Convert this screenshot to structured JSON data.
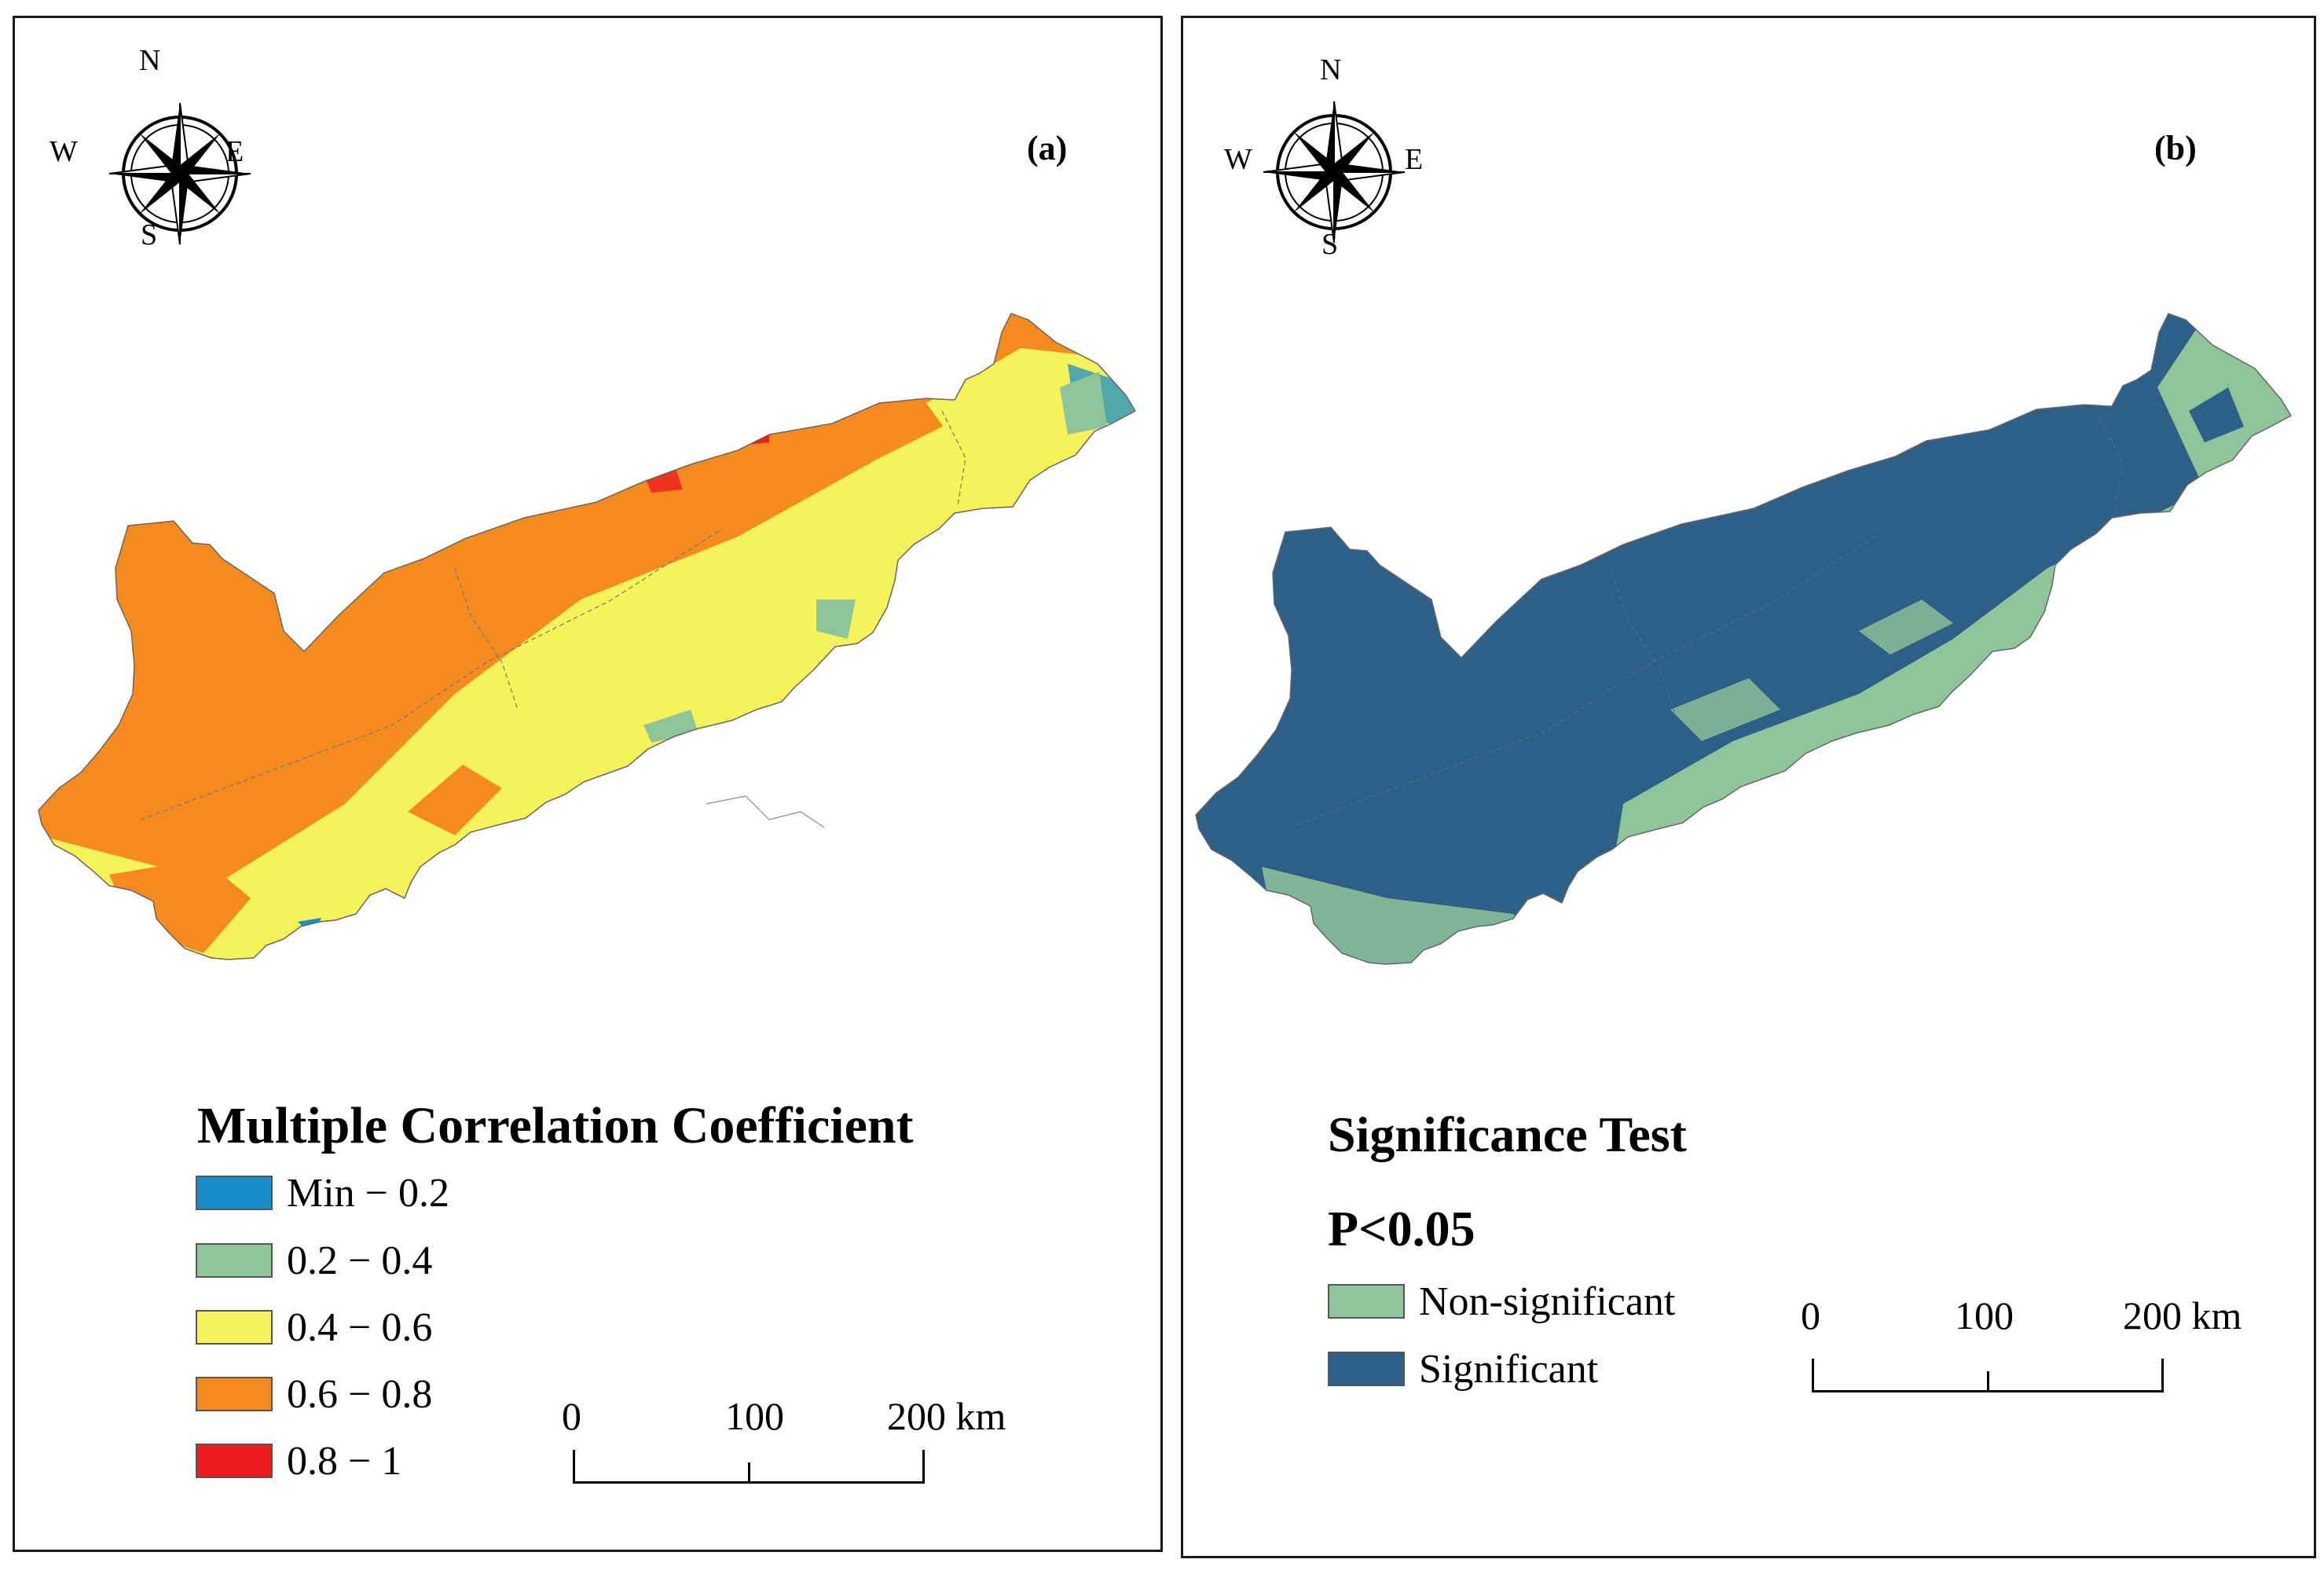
{
  "panel_a": {
    "label": "(a)",
    "compass": {
      "n": "N",
      "s": "S",
      "e": "E",
      "w": "W",
      "icon": "compass-rose-icon"
    },
    "legend": {
      "title": "Multiple Correlation Coefficient",
      "items": [
        {
          "label": "Min − 0.2",
          "color": "#1a8ec8"
        },
        {
          "label": "0.2 − 0.4",
          "color": "#8fc49a"
        },
        {
          "label": "0.4 − 0.6",
          "color": "#f6f25a"
        },
        {
          "label": "0.6 − 0.8",
          "color": "#f58a1f"
        },
        {
          "label": "0.8 − 1",
          "color": "#ee1c1c"
        }
      ]
    },
    "scale": {
      "t0": "0",
      "t1": "100",
      "t2": "200 km"
    }
  },
  "panel_b": {
    "label": "(b)",
    "compass": {
      "n": "N",
      "s": "S",
      "e": "E",
      "w": "W",
      "icon": "compass-rose-icon"
    },
    "legend": {
      "title": "Significance Test",
      "subtitle": "P<0.05",
      "items": [
        {
          "label": "Non-significant",
          "color": "#8fc49a"
        },
        {
          "label": "Significant",
          "color": "#2e5f86"
        }
      ]
    },
    "scale": {
      "t0": "0",
      "t1": "100",
      "t2": "200 km"
    }
  }
}
